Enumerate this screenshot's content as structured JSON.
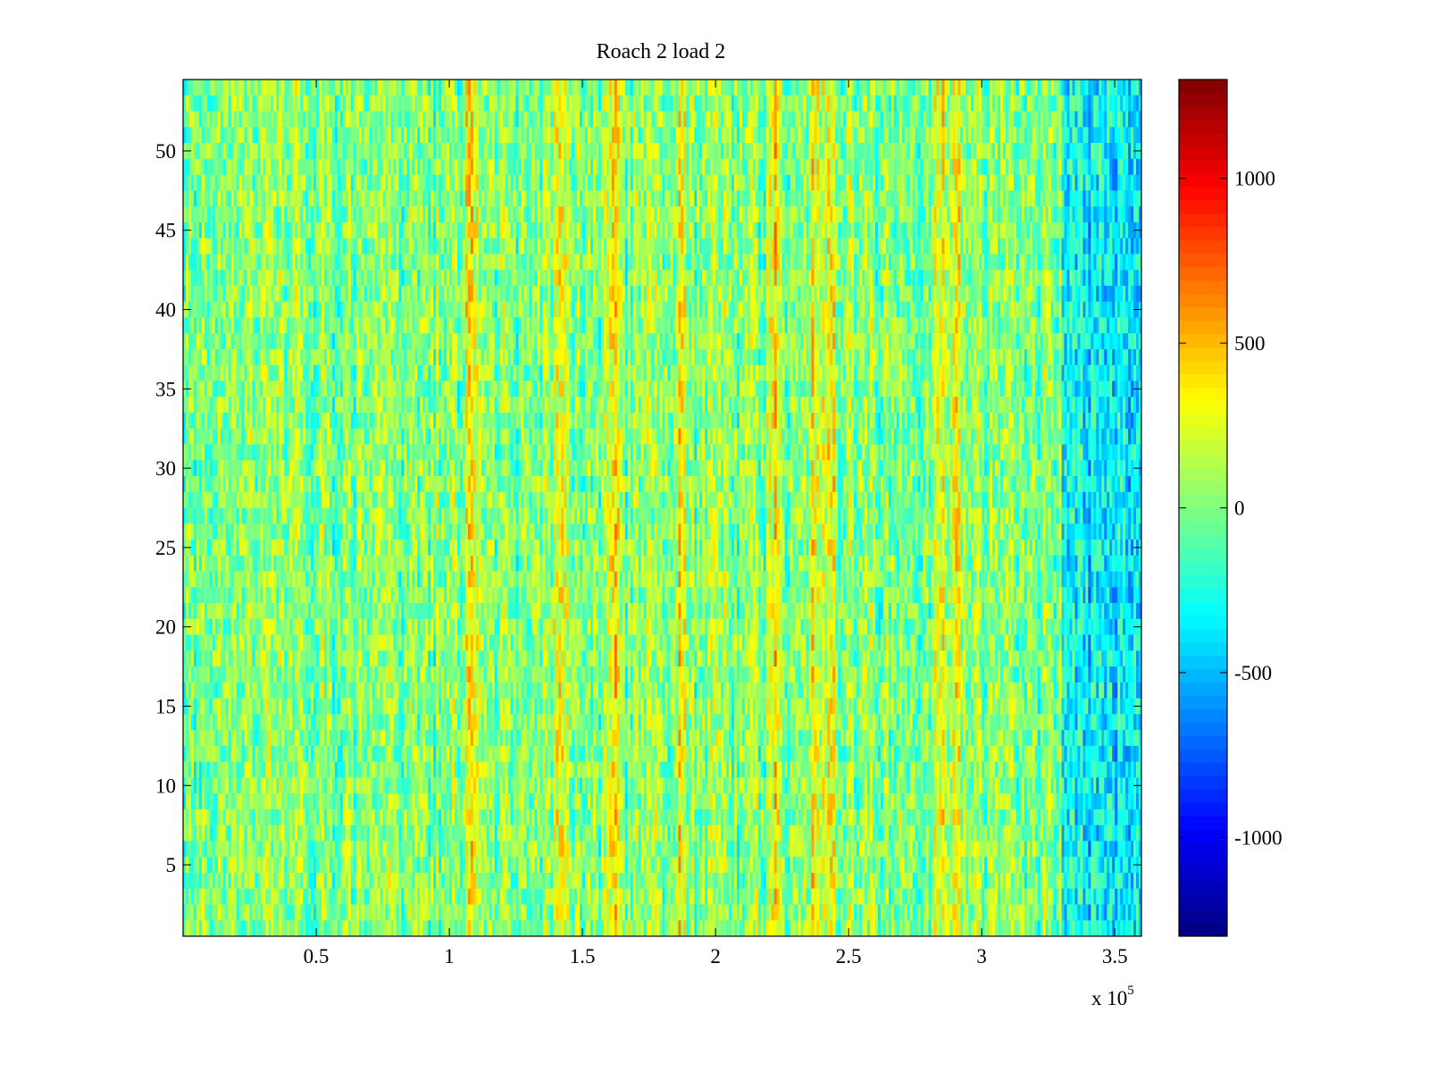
{
  "chart_data": {
    "type": "heatmap",
    "title": "Roach 2 load 2",
    "xlabel": "",
    "ylabel": "",
    "colormap": "jet",
    "x_multiplier": "x 10",
    "x_multiplier_exponent": "5",
    "xlim": [
      0,
      360000
    ],
    "ylim": [
      0.5,
      54.5
    ],
    "x_ticks": [
      50000,
      100000,
      150000,
      200000,
      250000,
      300000,
      350000
    ],
    "x_tick_labels": [
      "0.5",
      "1",
      "1.5",
      "2",
      "2.5",
      "3",
      "3.5"
    ],
    "y_ticks": [
      5,
      10,
      15,
      20,
      25,
      30,
      35,
      40,
      45,
      50
    ],
    "y_tick_labels": [
      "5",
      "10",
      "15",
      "20",
      "25",
      "30",
      "35",
      "40",
      "45",
      "50"
    ],
    "rows": 54,
    "clim": [
      -1300,
      1300
    ],
    "colorbar": {
      "ticks": [
        -1000,
        -500,
        0,
        500,
        1000
      ],
      "tick_labels": [
        "-1000",
        "-500",
        "0",
        "500",
        "1000"
      ]
    },
    "value_profile": {
      "baseline": 0,
      "noise_amplitude": 350,
      "bright_bands_x": [
        108000,
        142000,
        162000,
        187000,
        222000,
        237000,
        243000,
        285000,
        290000
      ],
      "bright_band_value": 550,
      "dim_region_x": [
        330000,
        360000
      ],
      "dim_region_value": -350
    }
  }
}
